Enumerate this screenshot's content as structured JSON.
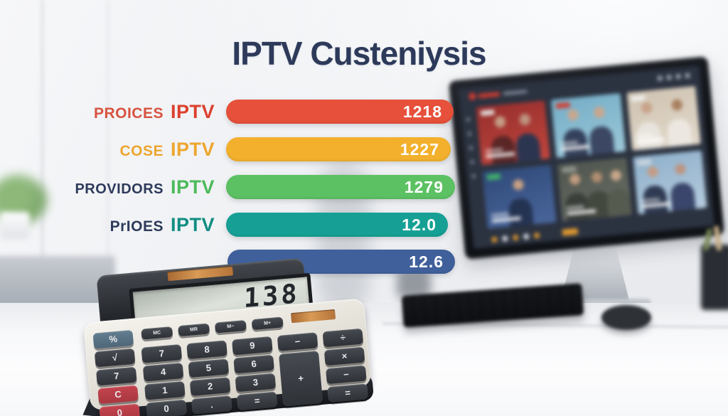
{
  "title": "IPTV Custeniysis",
  "chart_data": {
    "type": "bar",
    "orientation": "horizontal",
    "title": "IPTV Custeniysis",
    "xlabel": "",
    "ylabel": "",
    "legend": false,
    "grid": false,
    "value_text_color": "#ffffff",
    "rows": [
      {
        "label": "PROICES",
        "brand": "IPTV",
        "value": "1218",
        "bar_color": "#e7503a",
        "label_color": "#d8523f",
        "brand_color": "#dd3f2e"
      },
      {
        "label": "COSE",
        "brand": "IPTV",
        "value": "1227",
        "bar_color": "#f3b02c",
        "label_color": "#eda62f",
        "brand_color": "#eda62f"
      },
      {
        "label": "PROVIDORS",
        "brand": "IPTV",
        "value": "1279",
        "bar_color": "#5cc162",
        "label_color": "#2d3a5a",
        "brand_color": "#4cba5a"
      },
      {
        "label": "PrIOES",
        "brand": "IPTV",
        "value": "12.0",
        "bar_color": "#16a095",
        "label_color": "#2d3a5a",
        "brand_color": "#108d81"
      },
      {
        "label": "",
        "brand": "",
        "value": "12.6",
        "bar_color": "#40609c",
        "label_color": "#2d3a5a",
        "brand_color": "#40609c"
      }
    ]
  },
  "calculator": {
    "display": "138",
    "function_keys": [
      "MC",
      "MR",
      "M−",
      "M+"
    ],
    "side_keys": [
      {
        "label": "%",
        "type": "blue"
      },
      {
        "label": "√",
        "type": "dark"
      },
      {
        "label": "7",
        "type": "dark"
      },
      {
        "label": "C",
        "type": "red"
      },
      {
        "label": "0",
        "type": "red"
      }
    ],
    "main_keys": [
      {
        "label": "7",
        "col": 1,
        "row": 1
      },
      {
        "label": "8",
        "col": 2,
        "row": 1
      },
      {
        "label": "9",
        "col": 3,
        "row": 1
      },
      {
        "label": "−",
        "col": 4,
        "row": 1
      },
      {
        "label": "÷",
        "col": 5,
        "row": 1
      },
      {
        "label": "4",
        "col": 1,
        "row": 2
      },
      {
        "label": "5",
        "col": 2,
        "row": 2
      },
      {
        "label": "6",
        "col": 3,
        "row": 2
      },
      {
        "label": "+",
        "col": 4,
        "row": 2,
        "tall": true
      },
      {
        "label": "×",
        "col": 5,
        "row": 2
      },
      {
        "label": "1",
        "col": 1,
        "row": 3
      },
      {
        "label": "2",
        "col": 2,
        "row": 3
      },
      {
        "label": "3",
        "col": 3,
        "row": 3
      },
      {
        "label": "−",
        "col": 5,
        "row": 3
      },
      {
        "label": "0",
        "col": 1,
        "row": 4
      },
      {
        "label": ".",
        "col": 2,
        "row": 4
      },
      {
        "label": "=",
        "col": 3,
        "row": 4
      },
      {
        "label": "=",
        "col": 5,
        "row": 4
      }
    ],
    "body_color": "#e9e6de",
    "housing_color": "#2b2e33",
    "solar_color": "#c98440",
    "red_key_color": "#b53d46",
    "blue_key_color": "#5a7486"
  },
  "monitor": {
    "screen_bg": "#2b3240",
    "logo_color": "#d23b2f",
    "topbar_icon_count": 4,
    "sidebar_dot_count": 5,
    "bottom_dot_colors": [
      "#e0992f",
      "#d8dde4",
      "#e0992f",
      "#d8dde4",
      "#e0992f"
    ],
    "tiles": [
      {
        "name": "tile-red-news",
        "bg1": "#972f2d",
        "bg2": "#c0453c",
        "badge": "#e3e3e3",
        "persons": [
          {
            "x": 16,
            "skin": "#c49c85",
            "shirt": "#5a2626"
          },
          {
            "x": 52,
            "skin": "#bd9480",
            "shirt": "#2c3550"
          }
        ]
      },
      {
        "name": "tile-teal-news",
        "bg1": "#74aec7",
        "bg2": "#9cc7d8",
        "badge": "#d23b2f",
        "persons": [
          {
            "x": 12,
            "skin": "#c9a78e",
            "shirt": "#35415c"
          },
          {
            "x": 50,
            "skin": "#c9a78e",
            "shirt": "#3b4763"
          }
        ]
      },
      {
        "name": "tile-beige-duo",
        "bg1": "#cfc3b2",
        "bg2": "#e2d9cb",
        "badge": "#f0efec",
        "persons": [
          {
            "x": 10,
            "skin": "#c8a288",
            "shirt": "#e8e4dd"
          },
          {
            "x": 54,
            "skin": "#a97f5f",
            "shirt": "#ece7e0"
          }
        ]
      },
      {
        "name": "tile-blue-anchor",
        "bg1": "#2f4a78",
        "bg2": "#49659b",
        "badge": "#3fae6a",
        "persons": [
          {
            "x": 33,
            "skin": "#c8a084",
            "shirt": "#243352"
          }
        ]
      },
      {
        "name": "tile-dark-panel",
        "bg1": "#4f554e",
        "bg2": "#6a6f66",
        "badge": "#8f958c",
        "persons": [
          {
            "x": 6,
            "skin": "#c29c80",
            "shirt": "#3a3f3a"
          },
          {
            "x": 38,
            "skin": "#b28e70",
            "shirt": "#43483f"
          },
          {
            "x": 66,
            "skin": "#c9a78a",
            "shirt": "#565b50"
          }
        ]
      },
      {
        "name": "tile-lightblue-duo",
        "bg1": "#8fb0cb",
        "bg2": "#b4cbdd",
        "badge": "#c9d4de",
        "persons": [
          {
            "x": 10,
            "skin": "#c49c85",
            "shirt": "#2f3a52"
          },
          {
            "x": 50,
            "skin": "#bd9480",
            "shirt": "#3a466b"
          }
        ]
      }
    ]
  },
  "scene": {
    "wall_color": "#f0f1f4",
    "desk_color": "#fafbfc",
    "cabinet_color": "#b9bec5",
    "keyboard_color": "#3e4247",
    "accent_navy": "#2d3a5a"
  }
}
